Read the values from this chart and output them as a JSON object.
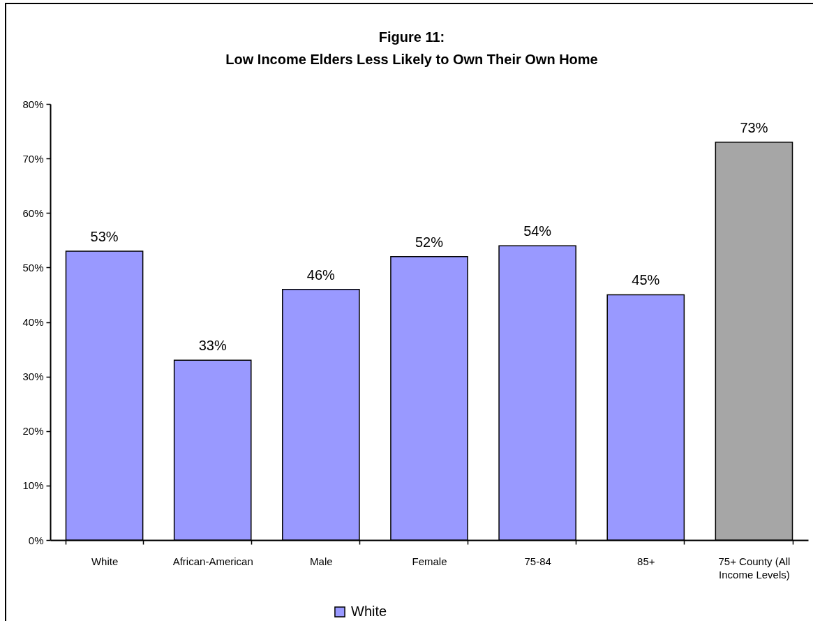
{
  "chart_data": {
    "type": "bar",
    "title": "Figure 11:\nLow Income Elders Less Likely to Own Their Own Home",
    "categories": [
      "White",
      "African-American",
      "Male",
      "Female",
      "75-84",
      "85+",
      "75+ County (All Income Levels)"
    ],
    "series": [
      {
        "name": "White",
        "color": "#9999ff",
        "colors": [
          "#9999ff",
          "#9999ff",
          "#9999ff",
          "#9999ff",
          "#9999ff",
          "#9999ff",
          "#a6a6a6"
        ],
        "values": [
          53,
          33,
          46,
          52,
          54,
          45,
          73
        ],
        "value_labels": [
          "53%",
          "33%",
          "46%",
          "52%",
          "54%",
          "45%",
          "73%"
        ]
      }
    ],
    "ylim": [
      0,
      80
    ],
    "yticks": [
      {
        "value": 0,
        "label": "0%"
      },
      {
        "value": 10,
        "label": "10%"
      },
      {
        "value": 20,
        "label": "20%"
      },
      {
        "value": 30,
        "label": "30%"
      },
      {
        "value": 40,
        "label": "40%"
      },
      {
        "value": 50,
        "label": "50%"
      },
      {
        "value": 60,
        "label": "60%"
      },
      {
        "value": 70,
        "label": "70%"
      },
      {
        "value": 80,
        "label": "80%"
      }
    ],
    "legend": "bottom"
  }
}
